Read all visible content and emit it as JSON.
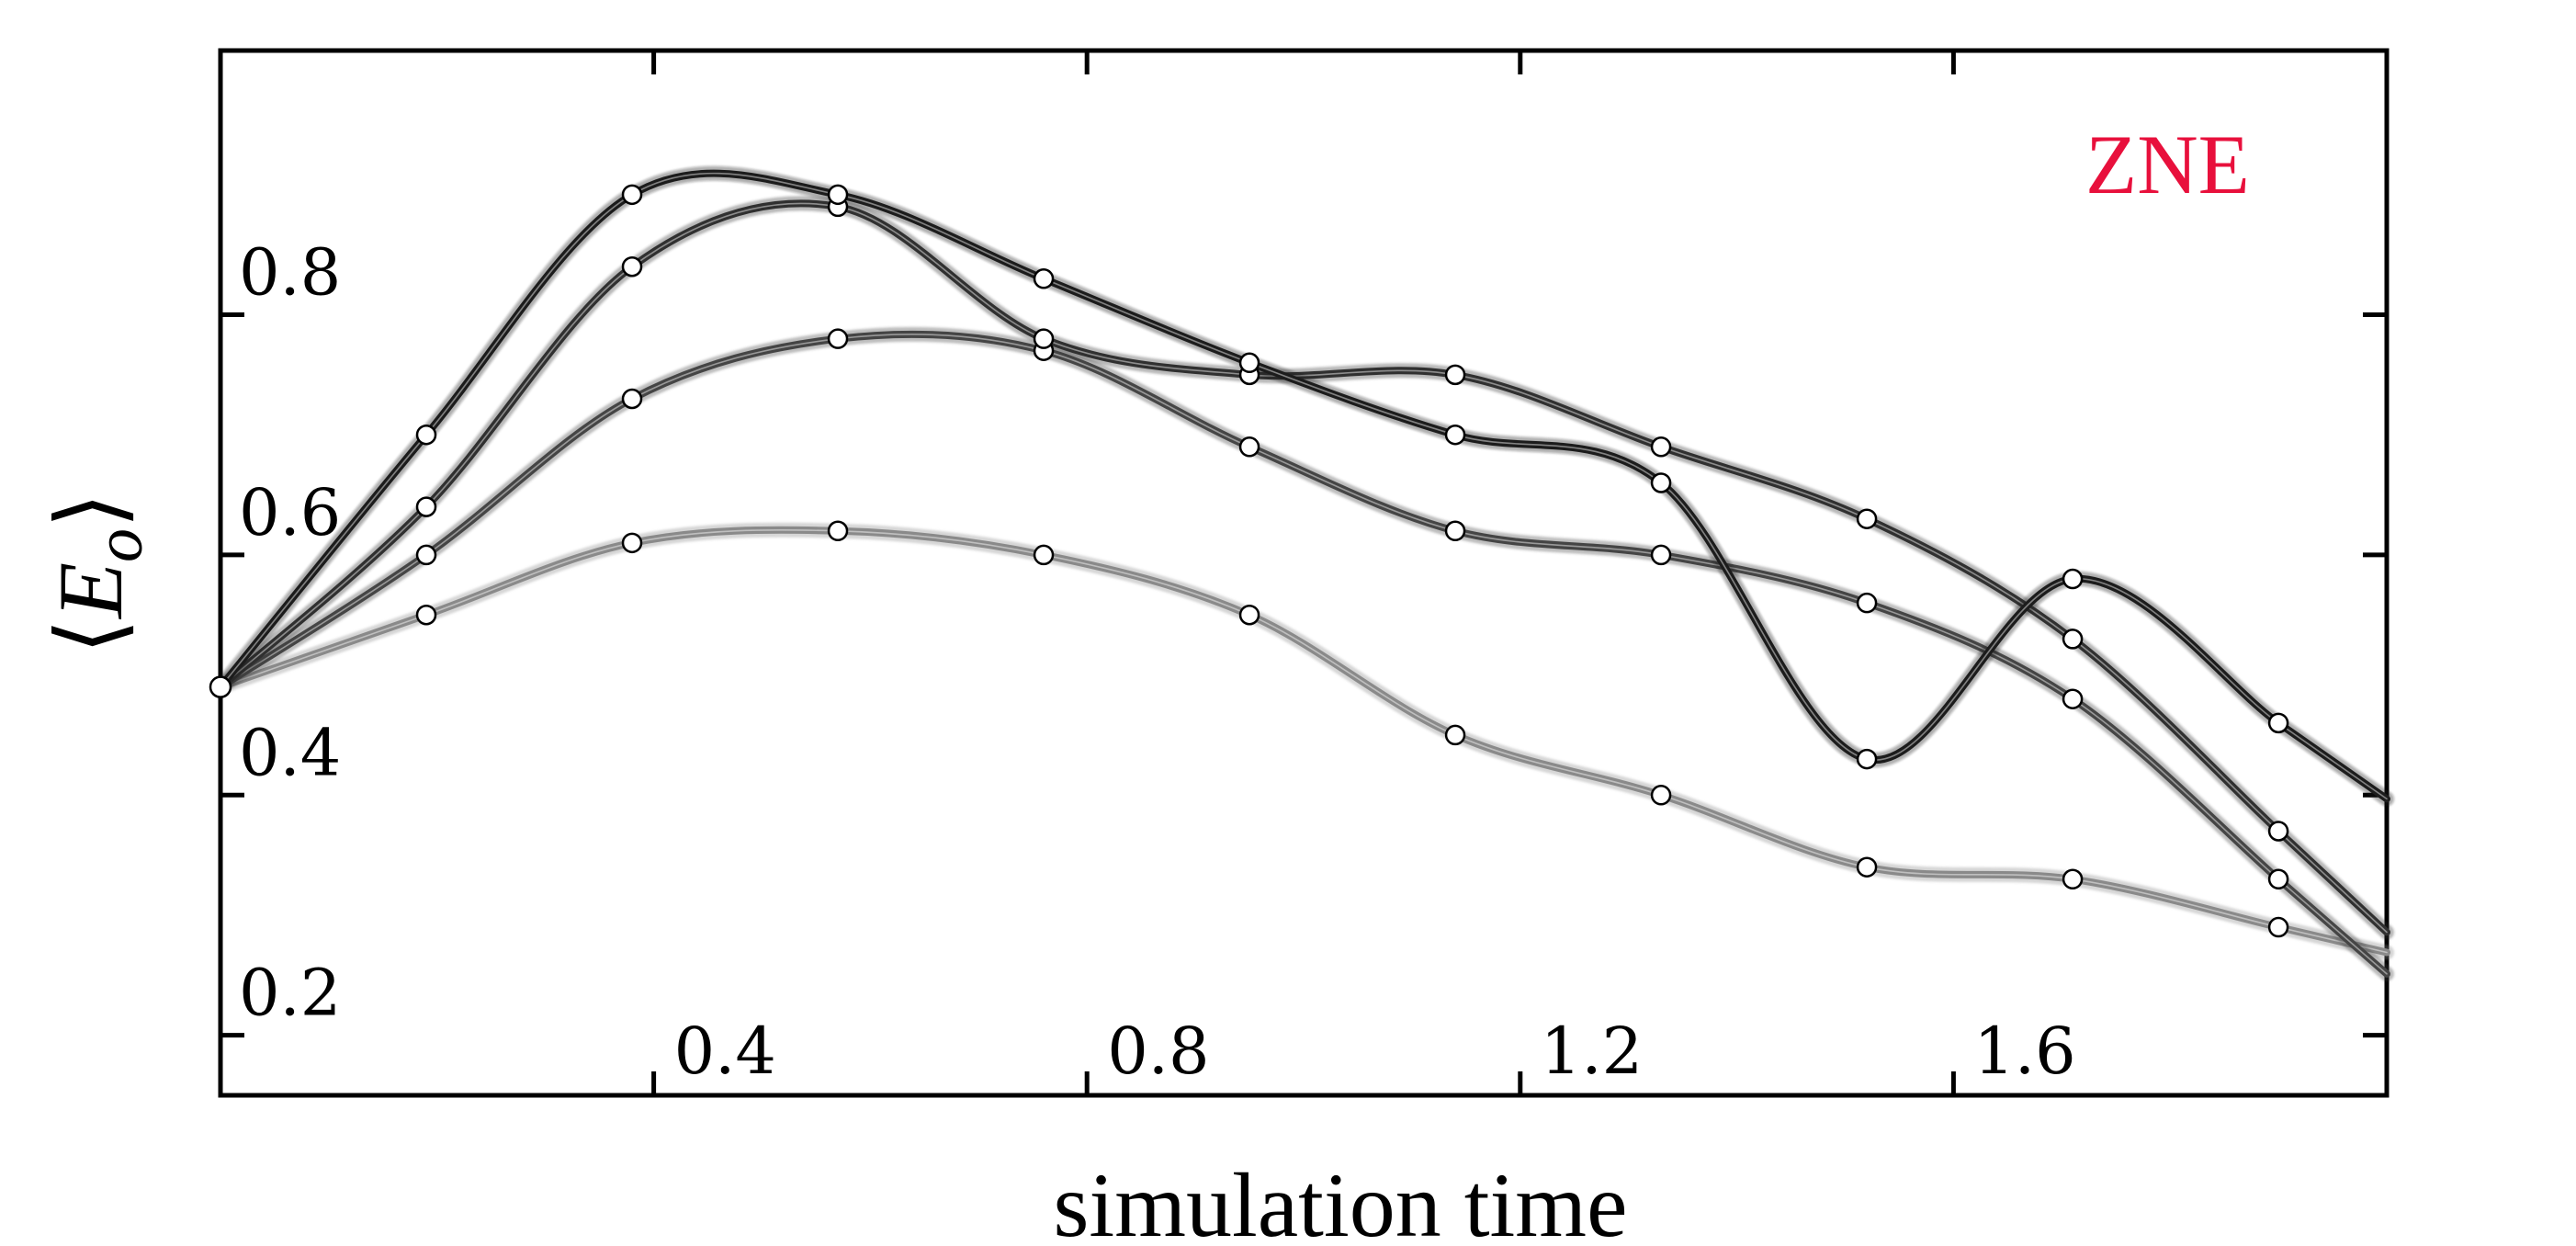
{
  "chart_data": {
    "type": "line",
    "title": "",
    "xlabel": "simulation time",
    "ylabel": "⟨E_o⟩",
    "ylabel_main": "E",
    "ylabel_sub": "o",
    "annotation": "ZNE",
    "annotation_color": "#e8103c",
    "xlim": [
      0,
      2.0
    ],
    "ylim": [
      0.15,
      1.02
    ],
    "x_ticks": [
      0.4,
      0.8,
      1.2,
      1.6
    ],
    "x_tick_labels": [
      "0.4",
      "0.8",
      "1.2",
      "1.6"
    ],
    "y_ticks": [
      0.2,
      0.4,
      0.6,
      0.8
    ],
    "y_tick_labels": [
      "0.2",
      "0.4",
      "0.6",
      "0.8"
    ],
    "grid": false,
    "legend": "none",
    "x": [
      0.0,
      0.19,
      0.38,
      0.57,
      0.76,
      0.95,
      1.14,
      1.33,
      1.52,
      1.71,
      1.9
    ],
    "series": [
      {
        "values": [
          0.49,
          0.7,
          0.9,
          0.9,
          0.83,
          0.76,
          0.7,
          0.66,
          0.43,
          0.58,
          0.46
        ],
        "color": "#1c1c1c"
      },
      {
        "values": [
          0.49,
          0.64,
          0.84,
          0.89,
          0.78,
          0.75,
          0.75,
          0.69,
          0.63,
          0.53,
          0.37
        ],
        "color": "#303030"
      },
      {
        "values": [
          0.49,
          0.6,
          0.73,
          0.78,
          0.77,
          0.69,
          0.62,
          0.6,
          0.56,
          0.48,
          0.33
        ],
        "color": "#454545"
      },
      {
        "values": [
          0.49,
          0.55,
          0.61,
          0.62,
          0.6,
          0.55,
          0.45,
          0.4,
          0.34,
          0.33,
          0.29
        ],
        "color": "#8a8a8a"
      }
    ]
  }
}
